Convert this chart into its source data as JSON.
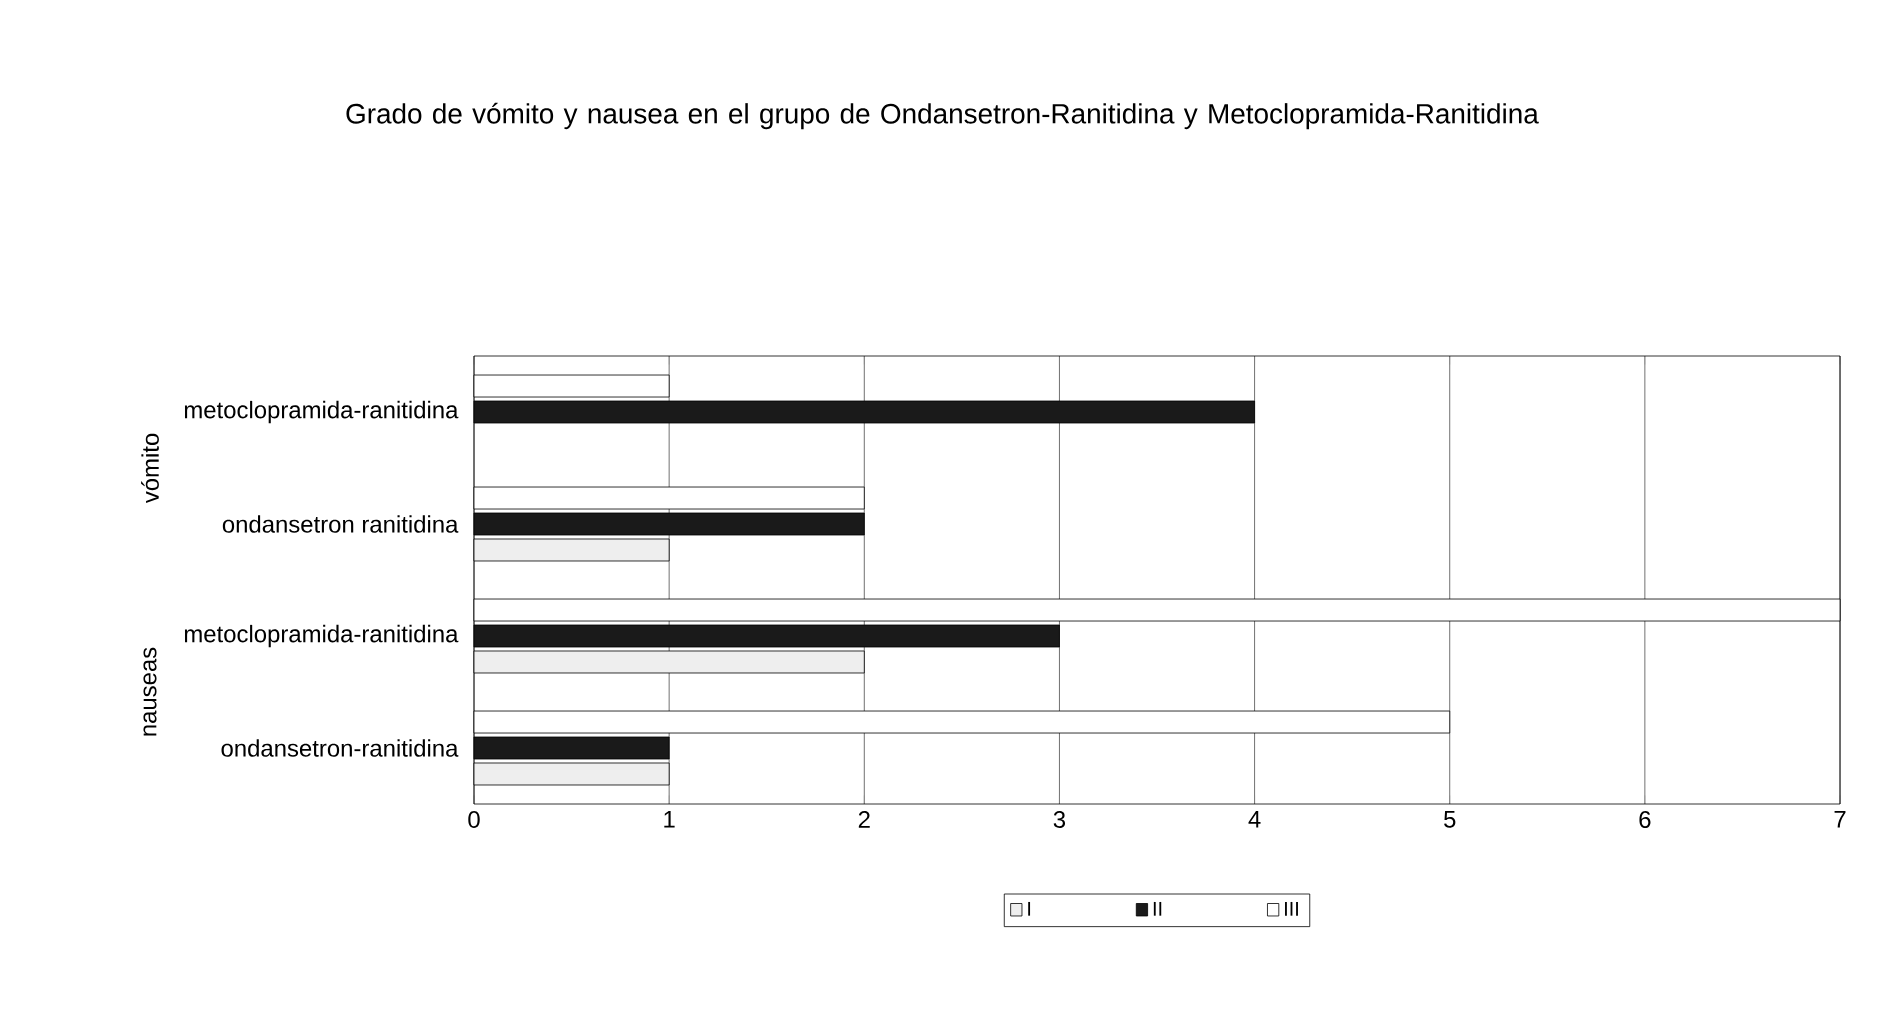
{
  "chart_data": {
    "type": "bar",
    "orientation": "horizontal",
    "title": "Grado de vómito y nausea en el grupo de Ondansetron-Ranitidina y Metoclopramida-Ranitidina",
    "categories": [
      "metoclopramida-ranitidina",
      "ondansetron ranitidina",
      "metoclopramida-ranitidina",
      "ondansetron-ranitidina"
    ],
    "annotations": [
      "vómito",
      "nauseas"
    ],
    "series": [
      {
        "name": "I",
        "color": "#eeeeee",
        "values": [
          0,
          1,
          2,
          1
        ]
      },
      {
        "name": "II",
        "color": "#1a1a1a",
        "values": [
          4,
          2,
          3,
          1
        ]
      },
      {
        "name": "III",
        "color": "#ffffff",
        "values": [
          1,
          2,
          7,
          5
        ]
      }
    ],
    "xlim": [
      0,
      7
    ],
    "xticks": [
      0,
      1,
      2,
      3,
      4,
      5,
      6,
      7
    ],
    "grid": "x",
    "legend": "bottom"
  }
}
